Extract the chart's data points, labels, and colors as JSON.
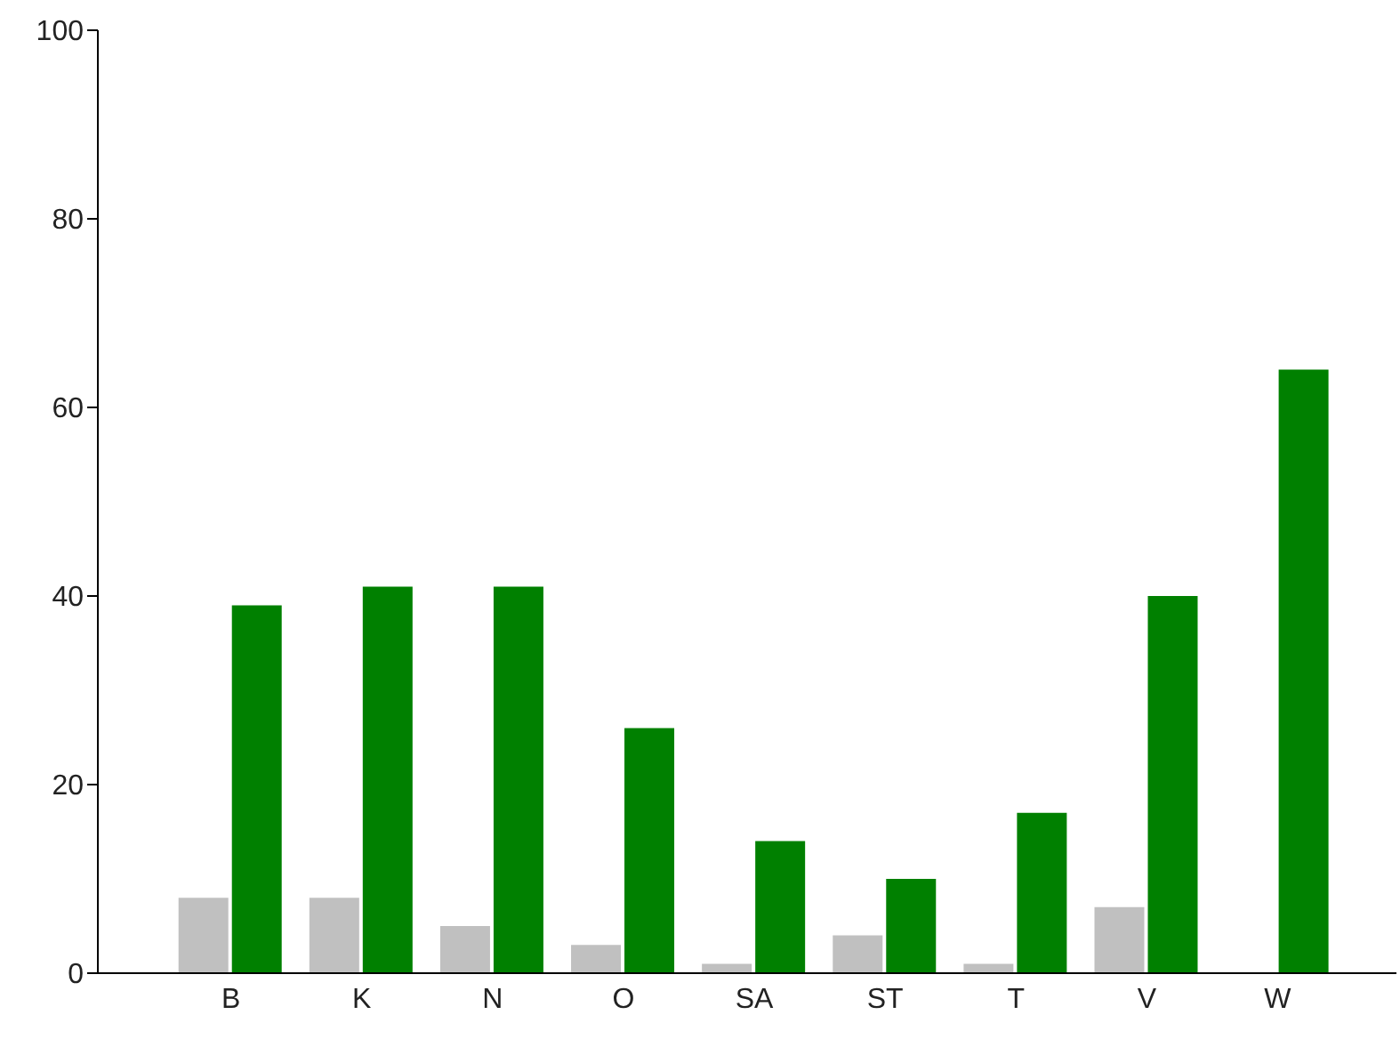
{
  "chart_data": {
    "type": "bar",
    "categories": [
      "B",
      "K",
      "N",
      "O",
      "SA",
      "ST",
      "T",
      "V",
      "W"
    ],
    "series": [
      {
        "color": "#c0c0c0",
        "values": [
          8,
          8,
          5,
          3,
          1,
          4,
          1,
          7,
          0
        ]
      },
      {
        "color": "#008000",
        "values": [
          39,
          41,
          41,
          26,
          14,
          10,
          17,
          40,
          64
        ]
      }
    ],
    "ylim": [
      0,
      100
    ],
    "yticks": [
      0,
      20,
      40,
      60,
      80,
      100
    ],
    "grid": false,
    "legend": false
  }
}
